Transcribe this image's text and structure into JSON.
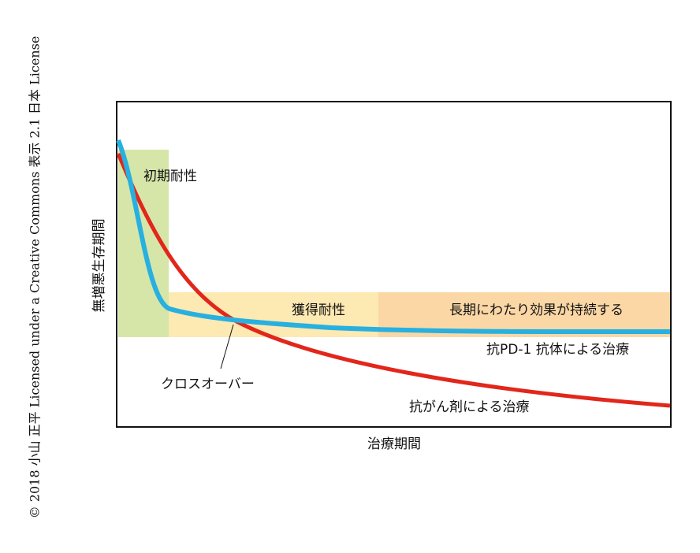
{
  "copyright": "© 2018 小山 正平 Licensed under a Creative Commons 表示 2.1 日本 License",
  "axes": {
    "y_label": "無増悪生存期間",
    "x_label": "治療期間"
  },
  "regions": {
    "initial": "初期耐性",
    "acquired": "獲得耐性",
    "durable": "長期にわたり効果が持続する"
  },
  "curves": {
    "pd1": "抗PD-1 抗体による治療",
    "chemo": "抗がん剤による治療"
  },
  "annotation": "クロスオーバー"
}
